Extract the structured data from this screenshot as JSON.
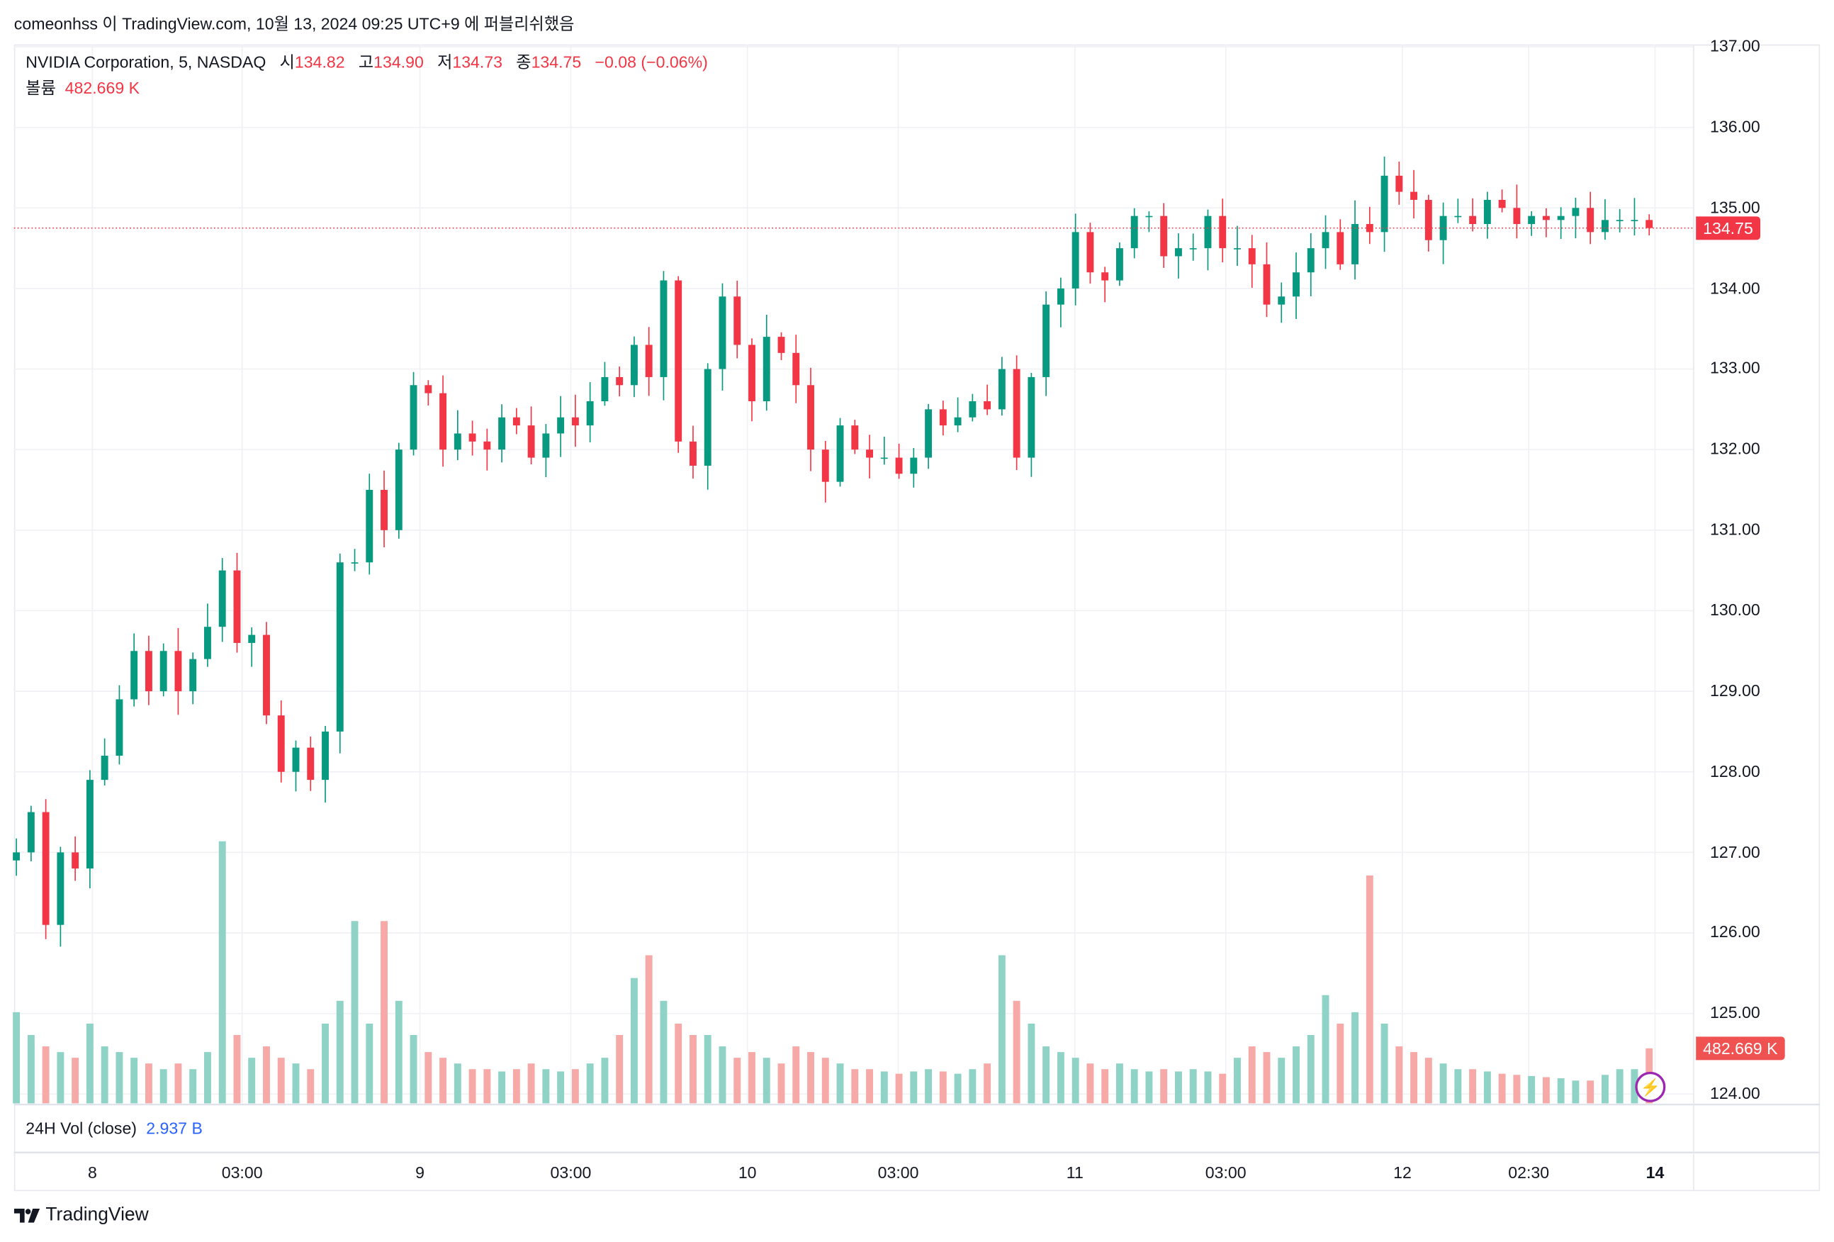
{
  "published": "comeonhss 이 TradingView.com, 10월 13, 2024 09:25 UTC+9 에 퍼블리쉬했음",
  "legend": {
    "symbol": "NVIDIA Corporation, 5, NASDAQ",
    "open_label": "시",
    "open": "134.82",
    "high_label": "고",
    "high": "134.90",
    "low_label": "저",
    "low": "134.73",
    "close_label": "종",
    "close": "134.75",
    "change": "−0.08 (−0.06%)",
    "volume_label": "볼륨",
    "volume": "482.669 K"
  },
  "volume_pane": {
    "label": "24H Vol (close)",
    "value": "2.937 B"
  },
  "price_axis": [
    "137.00",
    "136.00",
    "135.00",
    "134.00",
    "133.00",
    "132.00",
    "131.00",
    "130.00",
    "129.00",
    "128.00",
    "127.00",
    "126.00",
    "125.00",
    "124.00"
  ],
  "last_price_badge": "134.75",
  "volume_badge": "482.669 K",
  "time_axis": [
    {
      "label": "8",
      "bold": false
    },
    {
      "label": "03:00",
      "bold": false
    },
    {
      "label": "9",
      "bold": false
    },
    {
      "label": "03:00",
      "bold": false
    },
    {
      "label": "10",
      "bold": false
    },
    {
      "label": "03:00",
      "bold": false
    },
    {
      "label": "11",
      "bold": false
    },
    {
      "label": "03:00",
      "bold": false
    },
    {
      "label": "12",
      "bold": false
    },
    {
      "label": "02:30",
      "bold": false
    },
    {
      "label": "14",
      "bold": true
    }
  ],
  "brand": "TradingView",
  "colors": {
    "up": "#089981",
    "down": "#f23645",
    "volume_up": "#8fd3c6",
    "volume_down": "#f7a9a7",
    "accent": "#2962ff",
    "alert": "#9c27b0"
  },
  "icons": {
    "alert": "lightning-bolt-icon",
    "logo": "tradingview-logo-icon"
  },
  "chart_data": {
    "type": "candlestick",
    "ylim": [
      124,
      137
    ],
    "closes": [
      127.0,
      127.5,
      126.1,
      127.0,
      126.8,
      127.9,
      128.2,
      128.9,
      129.5,
      129.0,
      129.5,
      129.0,
      129.4,
      129.8,
      130.5,
      129.6,
      129.7,
      128.7,
      128.0,
      128.3,
      127.9,
      128.5,
      130.6,
      130.6,
      131.5,
      131.0,
      132.0,
      132.8,
      132.7,
      132.0,
      132.2,
      132.1,
      132.0,
      132.4,
      132.3,
      131.9,
      132.2,
      132.4,
      132.3,
      132.6,
      132.9,
      132.8,
      133.3,
      132.9,
      134.1,
      132.1,
      131.8,
      133.0,
      133.9,
      133.3,
      132.6,
      133.4,
      133.2,
      132.8,
      132.0,
      131.6,
      132.3,
      132.0,
      131.9,
      131.9,
      131.7,
      131.9,
      132.5,
      132.3,
      132.4,
      132.6,
      132.5,
      133.0,
      131.9,
      132.9,
      133.8,
      134.0,
      134.7,
      134.2,
      134.1,
      134.5,
      134.9,
      134.9,
      134.4,
      134.5,
      134.5,
      134.9,
      134.5,
      134.5,
      134.3,
      133.8,
      133.9,
      134.2,
      134.5,
      134.7,
      134.3,
      134.8,
      134.7,
      135.4,
      135.2,
      135.1,
      134.6,
      134.9,
      134.9,
      134.8,
      135.1,
      135.0,
      134.8,
      134.9,
      134.85,
      134.9,
      135.0,
      134.7,
      134.85,
      134.85,
      134.85,
      134.75
    ],
    "volumes_k": [
      800,
      600,
      500,
      450,
      400,
      700,
      500,
      450,
      400,
      350,
      300,
      350,
      300,
      450,
      2300,
      600,
      400,
      500,
      400,
      350,
      300,
      700,
      900,
      1600,
      700,
      1600,
      900,
      600,
      450,
      400,
      350,
      300,
      300,
      280,
      300,
      350,
      300,
      280,
      300,
      350,
      400,
      600,
      1100,
      1300,
      900,
      700,
      600,
      600,
      500,
      400,
      450,
      400,
      350,
      500,
      450,
      400,
      350,
      300,
      300,
      280,
      260,
      280,
      300,
      280,
      260,
      300,
      350,
      1300,
      900,
      700,
      500,
      450,
      400,
      350,
      300,
      350,
      300,
      280,
      300,
      280,
      300,
      280,
      260,
      400,
      500,
      450,
      400,
      500,
      600,
      950,
      700,
      800,
      2000,
      700,
      500,
      450,
      400,
      350,
      300,
      300,
      280,
      260,
      250,
      240,
      230,
      220,
      200,
      200,
      250,
      300,
      300,
      482.669
    ],
    "last_price": 134.75
  }
}
